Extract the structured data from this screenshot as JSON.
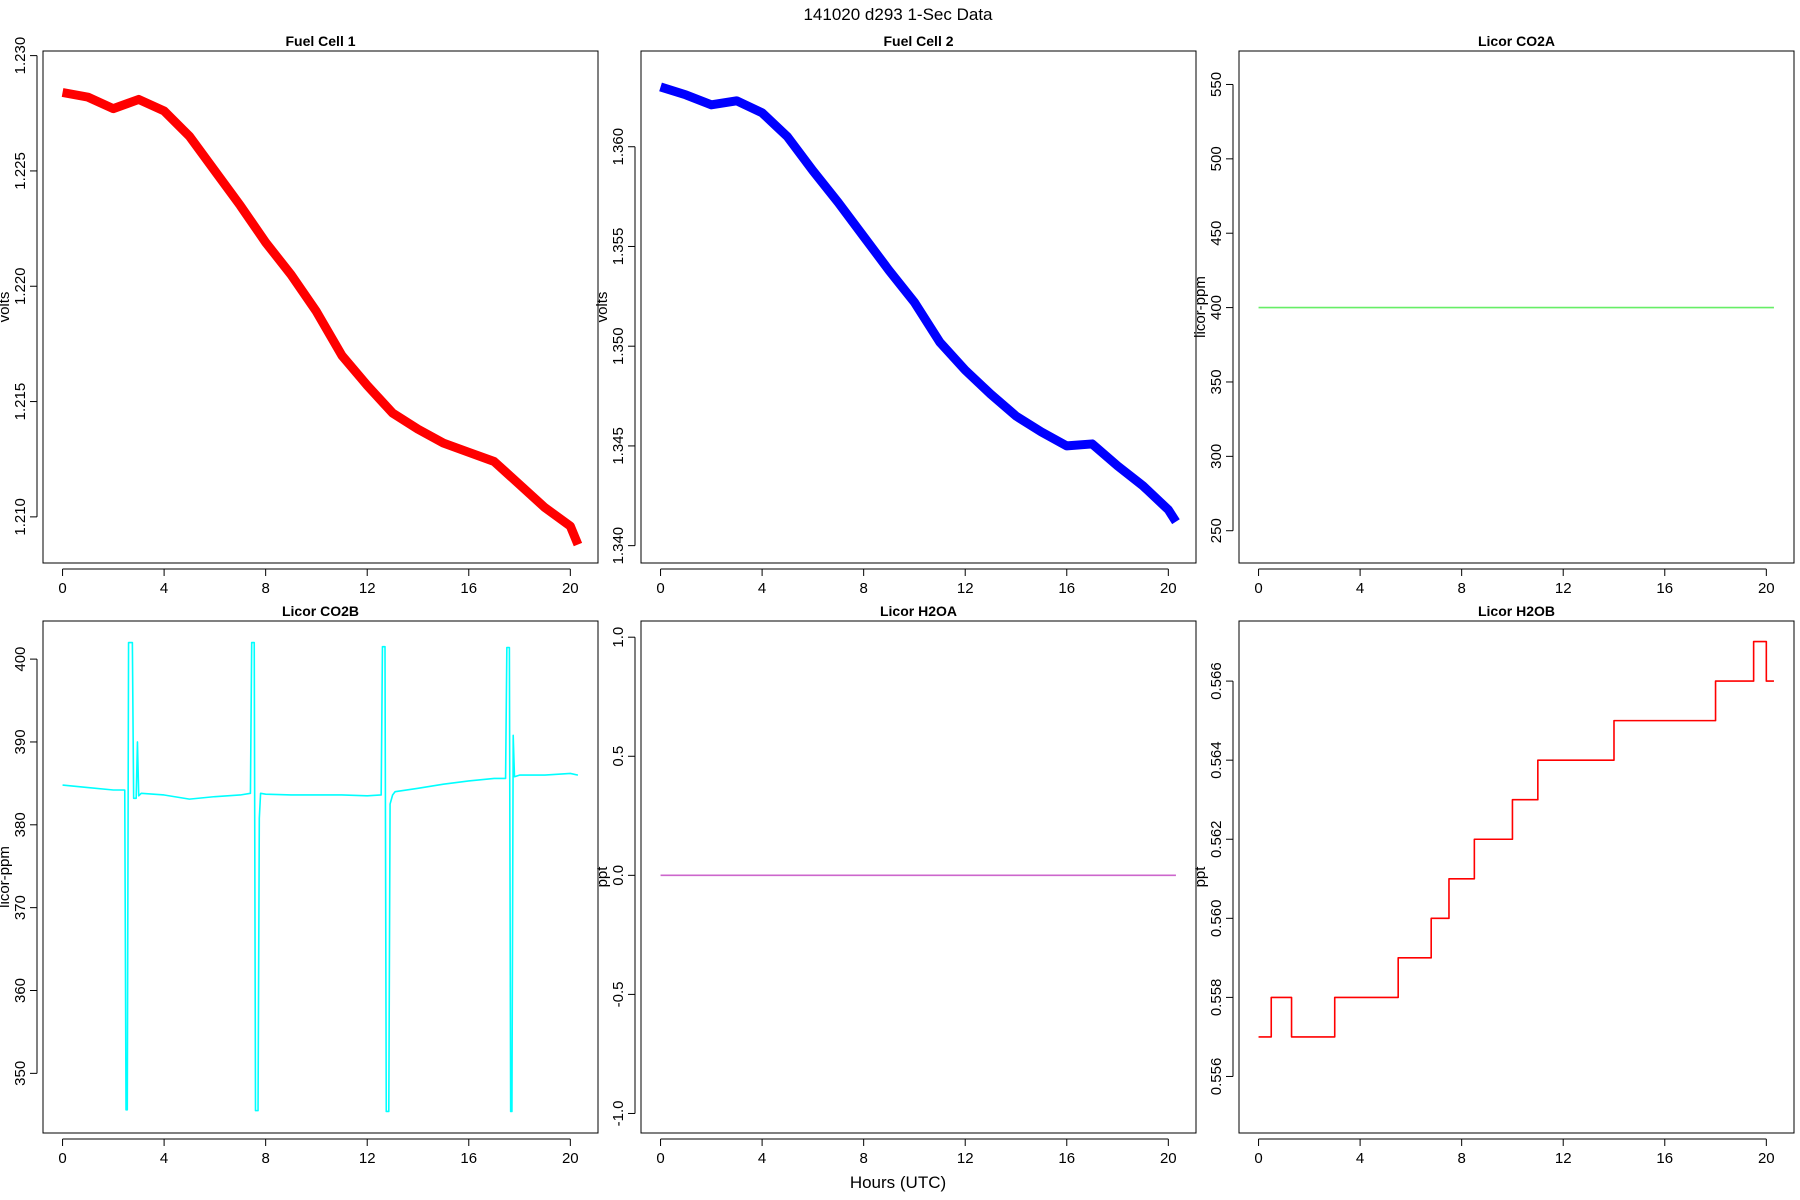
{
  "title": "141020   d293   1-Sec Data",
  "xlabel": "Hours (UTC)",
  "chart_data": [
    {
      "type": "line",
      "title": "Fuel Cell 1",
      "ylabel": "volts",
      "x": [
        0,
        1,
        2,
        3,
        4,
        5,
        6,
        7,
        8,
        9,
        10,
        11,
        12,
        13,
        14,
        15,
        16,
        17,
        18,
        19,
        20,
        20.3
      ],
      "series": [
        {
          "color": "#ff0000",
          "values": [
            1.2284,
            1.2282,
            1.2277,
            1.2281,
            1.2276,
            1.2265,
            1.225,
            1.2235,
            1.2219,
            1.2205,
            1.2189,
            1.217,
            1.2157,
            1.2145,
            1.2138,
            1.2132,
            1.2128,
            1.2124,
            1.2114,
            1.2104,
            1.2096,
            1.2088
          ]
        }
      ],
      "xlim": [
        -0.77,
        21.09
      ],
      "xticks": [
        0,
        4,
        8,
        12,
        16,
        20
      ],
      "ylim": [
        1.208,
        1.2302
      ],
      "yticks": [
        {
          "value": 1.21,
          "label": "1.210"
        },
        1.215,
        {
          "value": 1.22,
          "label": "1.220"
        },
        1.225,
        {
          "value": 1.23,
          "label": "1.230"
        }
      ]
    },
    {
      "type": "line",
      "title": "Fuel Cell 2",
      "ylabel": "volts",
      "x": [
        0,
        1,
        2,
        3,
        4,
        5,
        6,
        7,
        8,
        9,
        10,
        11,
        12,
        13,
        14,
        15,
        16,
        17,
        18,
        19,
        20,
        20.3
      ],
      "series": [
        {
          "color": "#0000ff",
          "values": [
            1.363,
            1.3626,
            1.3621,
            1.3623,
            1.3617,
            1.3605,
            1.3588,
            1.3572,
            1.3555,
            1.3538,
            1.3522,
            1.3502,
            1.3488,
            1.3476,
            1.3465,
            1.3457,
            1.345,
            1.3451,
            1.344,
            1.343,
            1.3418,
            1.3412
          ]
        }
      ],
      "xlim": [
        -0.77,
        21.09
      ],
      "xticks": [
        0,
        4,
        8,
        12,
        16,
        20
      ],
      "ylim": [
        1.33913,
        1.3648
      ],
      "yticks": [
        {
          "value": 1.34,
          "label": "1.340"
        },
        1.345,
        {
          "value": 1.35,
          "label": "1.350"
        },
        1.355,
        {
          "value": 1.36,
          "label": "1.360"
        }
      ]
    },
    {
      "type": "line",
      "title": "Licor CO2A",
      "ylabel": "licor-ppm",
      "x": [
        0,
        20.3
      ],
      "series": [
        {
          "color": "#66ee66",
          "values": [
            400,
            400
          ]
        }
      ],
      "xlim": [
        -0.77,
        21.09
      ],
      "xticks": [
        0,
        4,
        8,
        12,
        16,
        20
      ],
      "ylim": [
        228.3,
        572.5
      ],
      "yticks": [
        250,
        300,
        350,
        400,
        450,
        500,
        550
      ]
    },
    {
      "type": "line",
      "title": "Licor CO2B",
      "ylabel": "licor-ppm",
      "x": [
        0,
        1,
        2,
        2.45,
        2.5,
        2.55,
        2.6,
        2.75,
        2.8,
        2.9,
        2.95,
        3.0,
        3.1,
        4,
        5,
        6,
        7,
        7.4,
        7.45,
        7.55,
        7.6,
        7.7,
        7.75,
        7.8,
        8,
        9,
        10,
        11,
        12,
        12.55,
        12.6,
        12.7,
        12.75,
        12.85,
        12.9,
        13.0,
        13.1,
        14,
        15,
        16,
        17,
        17.45,
        17.5,
        17.6,
        17.65,
        17.7,
        17.75,
        17.8,
        18,
        19,
        20,
        20.3
      ],
      "series": [
        {
          "color": "#00ffff",
          "values": [
            384.8,
            384.5,
            384.2,
            384.2,
            345.6,
            345.6,
            402,
            402,
            383.2,
            383.2,
            390,
            383.5,
            383.8,
            383.6,
            383.1,
            383.4,
            383.6,
            383.8,
            402,
            402,
            345.5,
            345.5,
            380.8,
            383.8,
            383.7,
            383.6,
            383.6,
            383.6,
            383.5,
            383.6,
            401.5,
            401.5,
            345.4,
            345.4,
            382.5,
            383.6,
            384,
            384.4,
            384.9,
            385.3,
            385.6,
            385.6,
            401.4,
            401.4,
            345.4,
            345.4,
            390.8,
            385.8,
            386,
            386,
            386.2,
            386
          ]
        }
      ],
      "xlim": [
        -0.77,
        21.09
      ],
      "xticks": [
        0,
        4,
        8,
        12,
        16,
        20
      ],
      "ylim": [
        342.8,
        404.6
      ],
      "yticks": [
        350,
        360,
        370,
        380,
        390,
        400
      ]
    },
    {
      "type": "line",
      "title": "Licor H2OA",
      "ylabel": "ppt",
      "x": [
        0,
        20.3
      ],
      "series": [
        {
          "color": "#cc66cc",
          "values": [
            0,
            0
          ]
        }
      ],
      "xlim": [
        -0.77,
        21.09
      ],
      "xticks": [
        0,
        4,
        8,
        12,
        16,
        20
      ],
      "ylim": [
        -1.082,
        1.068
      ],
      "yticks": [
        {
          "value": -1,
          "label": "-1.0"
        },
        -0.5,
        {
          "value": 0,
          "label": "0.0"
        },
        0.5,
        {
          "value": 1,
          "label": "1.0"
        }
      ]
    },
    {
      "type": "line",
      "title": "Licor H2OB",
      "ylabel": "ppt",
      "x": [
        0,
        0.5,
        0.5,
        1.3,
        1.3,
        3,
        3,
        5.5,
        5.5,
        6.8,
        6.8,
        7.5,
        7.5,
        8.5,
        8.5,
        10,
        10,
        11,
        11,
        14,
        14,
        18,
        18,
        19.5,
        19.5,
        20,
        20,
        20.3
      ],
      "series": [
        {
          "color": "#ff0000",
          "values": [
            0.557,
            0.557,
            0.558,
            0.558,
            0.557,
            0.557,
            0.558,
            0.558,
            0.559,
            0.559,
            0.56,
            0.56,
            0.561,
            0.561,
            0.562,
            0.562,
            0.563,
            0.563,
            0.564,
            0.564,
            0.565,
            0.565,
            0.566,
            0.566,
            0.567,
            0.567,
            0.566,
            0.566
          ]
        }
      ],
      "xlim": [
        -0.77,
        21.09
      ],
      "xticks": [
        0,
        4,
        8,
        12,
        16,
        20
      ],
      "ylim": [
        0.55457,
        0.56752
      ],
      "yticks": [
        0.556,
        0.558,
        {
          "value": 0.56,
          "label": "0.560"
        },
        0.562,
        0.564,
        0.566
      ]
    }
  ]
}
